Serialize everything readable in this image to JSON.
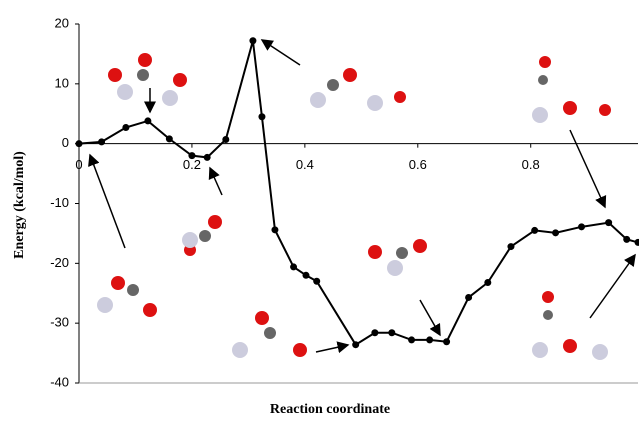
{
  "chart_data": {
    "type": "line",
    "x_label": "Reaction coordinate",
    "y_label": "Energy (kcal/mol)",
    "xlim": [
      0,
      0.99
    ],
    "ylim": [
      -40,
      20
    ],
    "xticks": [
      0,
      0.2,
      0.4,
      0.6,
      0.8
    ],
    "yticks": [
      -40,
      -30,
      -20,
      -10,
      0,
      10,
      20
    ],
    "grid": false,
    "series": [
      {
        "color": "#000000",
        "x": [
          0,
          0.04,
          0.083,
          0.122,
          0.16,
          0.2,
          0.227,
          0.26,
          0.308,
          0.324,
          0.347,
          0.38,
          0.402,
          0.421,
          0.49,
          0.524,
          0.554,
          0.589,
          0.621,
          0.651,
          0.69,
          0.724,
          0.765,
          0.807,
          0.844,
          0.89,
          0.938,
          0.97,
          0.99
        ],
        "values": [
          0,
          0.3,
          2.7,
          3.8,
          0.8,
          -2,
          -2.3,
          0.7,
          17.2,
          4.5,
          -14.4,
          -20.6,
          -22,
          -23,
          -33.6,
          -31.6,
          -31.6,
          -32.8,
          -32.8,
          -33.1,
          -25.7,
          -23.2,
          -17.2,
          -14.5,
          -14.9,
          -13.9,
          -13.2,
          -16,
          -16.5
        ]
      }
    ]
  }
}
